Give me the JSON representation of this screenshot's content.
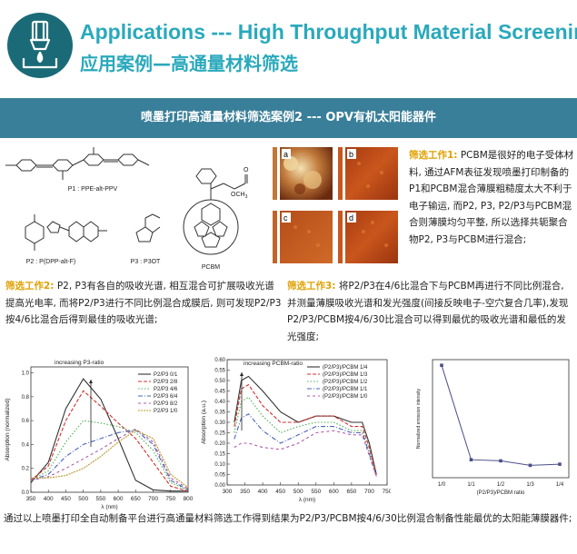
{
  "header": {
    "title_en": "Applications --- High Throughput Material Screening",
    "title_cn": "应用案例—高通量材料筛选"
  },
  "banner": {
    "text": "喷墨打印高通量材料筛选案例2 --- OPV有机太阳能器件"
  },
  "molecules": {
    "p1": "P1 : PPE-alt-PPV",
    "p2": "P2 : P(DPP-alt-F)",
    "p3": "P3 : P3OT",
    "pcbm": "PCBM",
    "och3": "OCH",
    "och3_sub": "3",
    "o": "O"
  },
  "afm": {
    "labels": [
      "a",
      "b",
      "c",
      "d"
    ]
  },
  "desc1": {
    "label": "筛选工作1:",
    "text": " PCBM是很好的电子受体材料, 通过AFM表征发现喷墨打印制备的P1和PCBM混合薄膜粗糙度太大不利于电子输运, 而P2, P3, P2/P3与PCBM混合则薄膜均匀平整, 所以选择共轭聚合物P2, P3与PCBM进行混合;"
  },
  "desc2": {
    "label": "筛选工作2:",
    "text": " P2, P3有各自的吸收光谱, 相互混合可扩展吸收光谱提高光电率, 而将P2/P3进行不同比例混合成膜后, 则可发现P2/P3按4/6比混合后得到最佳的吸收光谱;"
  },
  "desc3": {
    "label": "筛选工作3:",
    "text": " 将P2/P3在4/6比混合下与PCBM再进行不同比例混合, 并测量薄膜吸收光谱和发光强度(间接反映电子-空穴复合几率),发现P2/P3/PCBM按4/6/30比混合可以得到最优的吸收光谱和最低的发光强度;"
  },
  "summary": {
    "text": "通过以上喷墨打印全自动制备平台进行高通量材料筛选工作得到结果为P2/P3/PCBM按4/6/30比例混合制备性能最优的太阳能薄膜器件;"
  },
  "chart_data": [
    {
      "type": "line",
      "annotation": "increasing P3-ratio",
      "xlabel": "λ (nm)",
      "ylabel": "Absorption (normalized)",
      "xlim": [
        350,
        800
      ],
      "ylim": [
        0,
        1.05
      ],
      "x_ticks": [
        350,
        400,
        450,
        500,
        550,
        600,
        650,
        700,
        750,
        800
      ],
      "y_ticks": [
        "0.0",
        "0.2",
        "0.4",
        "0.6",
        "0.8",
        "1.0"
      ],
      "x": [
        350,
        400,
        450,
        500,
        550,
        600,
        650,
        700,
        750,
        800
      ],
      "series": [
        {
          "name": "P2/P3 0/1",
          "color": "#333333",
          "values": [
            0.08,
            0.25,
            0.7,
            0.95,
            0.78,
            0.45,
            0.1,
            0.02,
            0.01,
            0.01
          ]
        },
        {
          "name": "P2/P3 2/8",
          "color": "#d0312d",
          "values": [
            0.1,
            0.22,
            0.6,
            0.85,
            0.72,
            0.58,
            0.45,
            0.25,
            0.05,
            0.01
          ]
        },
        {
          "name": "P2/P3 4/6",
          "color": "#4caf50",
          "values": [
            0.1,
            0.18,
            0.42,
            0.6,
            0.58,
            0.55,
            0.5,
            0.35,
            0.08,
            0.02
          ]
        },
        {
          "name": "P2/P3 6/4",
          "color": "#4a64b8",
          "values": [
            0.1,
            0.15,
            0.3,
            0.4,
            0.45,
            0.5,
            0.52,
            0.4,
            0.1,
            0.02
          ]
        },
        {
          "name": "P2/P3 8/2",
          "color": "#b05aa8",
          "values": [
            0.1,
            0.13,
            0.2,
            0.28,
            0.36,
            0.45,
            0.53,
            0.42,
            0.12,
            0.03
          ]
        },
        {
          "name": "P2/P3 1/0",
          "color": "#b89a2e",
          "values": [
            0.12,
            0.12,
            0.14,
            0.2,
            0.3,
            0.42,
            0.52,
            0.45,
            0.15,
            0.04
          ]
        }
      ]
    },
    {
      "type": "line",
      "annotation": "increasing PCBM-ratio",
      "xlabel": "λ (nm)",
      "ylabel": "Absorption (a.u.)",
      "xlim": [
        300,
        750
      ],
      "ylim": [
        0,
        0.6
      ],
      "x_ticks": [
        300,
        350,
        400,
        450,
        500,
        550,
        600,
        650,
        700,
        750
      ],
      "y_ticks": [
        "0.00",
        "0.05",
        "0.10",
        "0.15",
        "0.20",
        "0.25",
        "0.30",
        "0.35",
        "0.40",
        "0.45",
        "0.50",
        "0.55",
        "0.60"
      ],
      "x": [
        320,
        340,
        360,
        400,
        450,
        500,
        550,
        600,
        650,
        680,
        700,
        720
      ],
      "series": [
        {
          "name": "(P2/P3)/PCBM 1/4",
          "color": "#333333",
          "values": [
            0.3,
            0.5,
            0.52,
            0.45,
            0.35,
            0.3,
            0.33,
            0.33,
            0.3,
            0.3,
            0.2,
            0.05
          ]
        },
        {
          "name": "(P2/P3)/PCBM 1/3",
          "color": "#d0312d",
          "values": [
            0.28,
            0.46,
            0.48,
            0.38,
            0.3,
            0.3,
            0.33,
            0.33,
            0.28,
            0.28,
            0.18,
            0.05
          ]
        },
        {
          "name": "(P2/P3)/PCBM 1/2",
          "color": "#4caf50",
          "values": [
            0.25,
            0.4,
            0.42,
            0.33,
            0.25,
            0.28,
            0.3,
            0.3,
            0.26,
            0.26,
            0.16,
            0.04
          ]
        },
        {
          "name": "(P2/P3)/PCBM 1/1",
          "color": "#4a64b8",
          "values": [
            0.22,
            0.32,
            0.34,
            0.26,
            0.2,
            0.24,
            0.28,
            0.28,
            0.25,
            0.25,
            0.15,
            0.04
          ]
        },
        {
          "name": "(P2/P3)/PCBM 1/0",
          "color": "#b05aa8",
          "values": [
            0.18,
            0.2,
            0.2,
            0.18,
            0.17,
            0.2,
            0.25,
            0.26,
            0.24,
            0.24,
            0.14,
            0.04
          ]
        }
      ]
    },
    {
      "type": "line",
      "xlabel": "(P2/P3)/PCBM ratio",
      "ylabel": "Normalized emission intensity",
      "categories": [
        "1/0",
        "1/1",
        "1/2",
        "1/3",
        "1/4"
      ],
      "values": [
        1.0,
        0.16,
        0.15,
        0.11,
        0.12
      ],
      "ylim": [
        0,
        1.05
      ],
      "color": "#4a4f8a"
    }
  ]
}
